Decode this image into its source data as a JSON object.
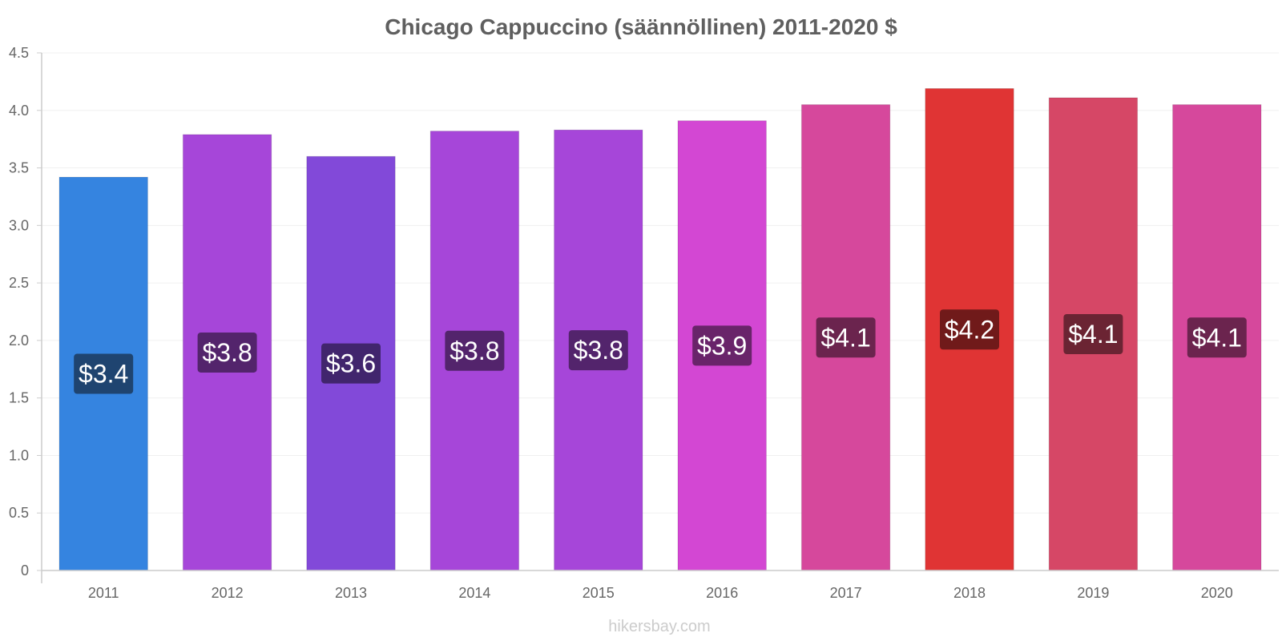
{
  "chart_data": {
    "type": "bar",
    "title": "Chicago Cappuccino (säännöllinen) 2011-2020 $",
    "xlabel": "",
    "ylabel": "",
    "categories": [
      "2011",
      "2012",
      "2013",
      "2014",
      "2015",
      "2016",
      "2017",
      "2018",
      "2019",
      "2020"
    ],
    "values": [
      3.42,
      3.79,
      3.6,
      3.82,
      3.83,
      3.91,
      4.05,
      4.19,
      4.11,
      4.05
    ],
    "data_labels": [
      "$3.4",
      "$3.8",
      "$3.6",
      "$3.8",
      "$3.8",
      "$3.9",
      "$4.1",
      "$4.2",
      "$4.1",
      "$4.1"
    ],
    "ylim": [
      0,
      4.5
    ],
    "yticks": [
      0,
      0.5,
      1.0,
      1.5,
      2.0,
      2.5,
      3.0,
      3.5,
      4.0,
      4.5
    ],
    "ytick_labels": [
      "0",
      "0.5",
      "1.0",
      "1.5",
      "2.0",
      "2.5",
      "3.0",
      "3.5",
      "4.0",
      "4.5"
    ],
    "grid": true,
    "legend": "none",
    "bar_colors": [
      "#3584e0",
      "#a646d9",
      "#8249d9",
      "#a646d9",
      "#a646d9",
      "#d347d3",
      "#d6489c",
      "#e03434",
      "#d64766",
      "#d6489c"
    ],
    "label_bg_colors": [
      "#1f4470",
      "#53246c",
      "#41256d",
      "#53246c",
      "#53246c",
      "#69246a",
      "#6b244e",
      "#701a1a",
      "#6b2433",
      "#6b244e"
    ]
  },
  "watermark": "hikersbay.com"
}
